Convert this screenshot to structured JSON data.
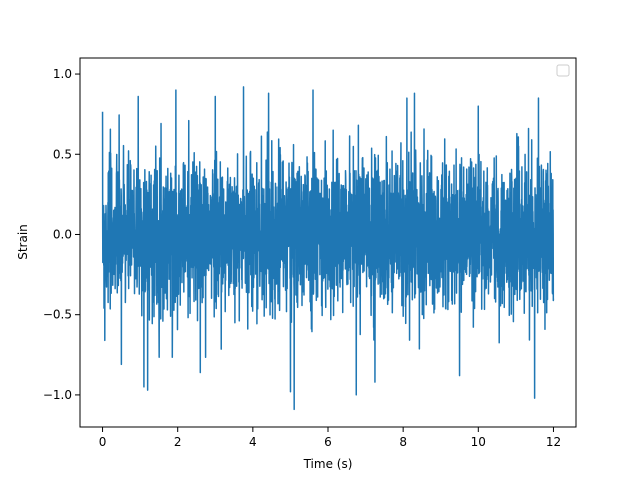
{
  "chart_data": {
    "type": "line",
    "title": "",
    "xlabel": "Time (s)",
    "ylabel": "Strain",
    "xlim": [
      -0.6,
      12.6
    ],
    "ylim": [
      -1.2,
      1.1
    ],
    "xticks": [
      0,
      2,
      4,
      6,
      8,
      10,
      12
    ],
    "xtick_labels": [
      "0",
      "2",
      "4",
      "6",
      "8",
      "10",
      "12"
    ],
    "yticks": [
      -1.0,
      -0.5,
      0.0,
      0.5,
      1.0
    ],
    "ytick_labels": [
      "−1.0",
      "−0.5",
      "0.0",
      "0.5",
      "1.0"
    ],
    "grid": false,
    "legend": {
      "placement": "top-right",
      "entries": []
    },
    "series_color": "#1f77b4",
    "series": [
      {
        "x_range": [
          0.0,
          12.0
        ],
        "typical_range": [
          -0.45,
          0.45
        ],
        "peaks": [
          {
            "x": 0.06,
            "y": 0.61
          },
          {
            "x": 0.5,
            "y": 0.97
          },
          {
            "x": 0.95,
            "y": 0.86
          },
          {
            "x": 1.95,
            "y": 0.9
          },
          {
            "x": 3.0,
            "y": 0.86
          },
          {
            "x": 3.75,
            "y": 0.92
          },
          {
            "x": 4.42,
            "y": 0.88
          },
          {
            "x": 5.6,
            "y": 0.9
          },
          {
            "x": 8.1,
            "y": 0.85
          },
          {
            "x": 8.3,
            "y": 0.88
          },
          {
            "x": 10.0,
            "y": 0.8
          },
          {
            "x": 11.6,
            "y": 0.85
          },
          {
            "x": 12.0,
            "y": 0.57
          }
        ],
        "troughs": [
          {
            "x": 0.06,
            "y": -0.66
          },
          {
            "x": 0.5,
            "y": -0.81
          },
          {
            "x": 1.1,
            "y": -0.95
          },
          {
            "x": 1.2,
            "y": -0.97
          },
          {
            "x": 2.6,
            "y": -0.86
          },
          {
            "x": 5.0,
            "y": -0.98
          },
          {
            "x": 5.1,
            "y": -1.09
          },
          {
            "x": 6.75,
            "y": -1.0
          },
          {
            "x": 7.25,
            "y": -0.92
          },
          {
            "x": 9.5,
            "y": -0.88
          },
          {
            "x": 11.5,
            "y": -1.02
          },
          {
            "x": 12.0,
            "y": -0.4
          }
        ],
        "seed": 7
      }
    ]
  }
}
